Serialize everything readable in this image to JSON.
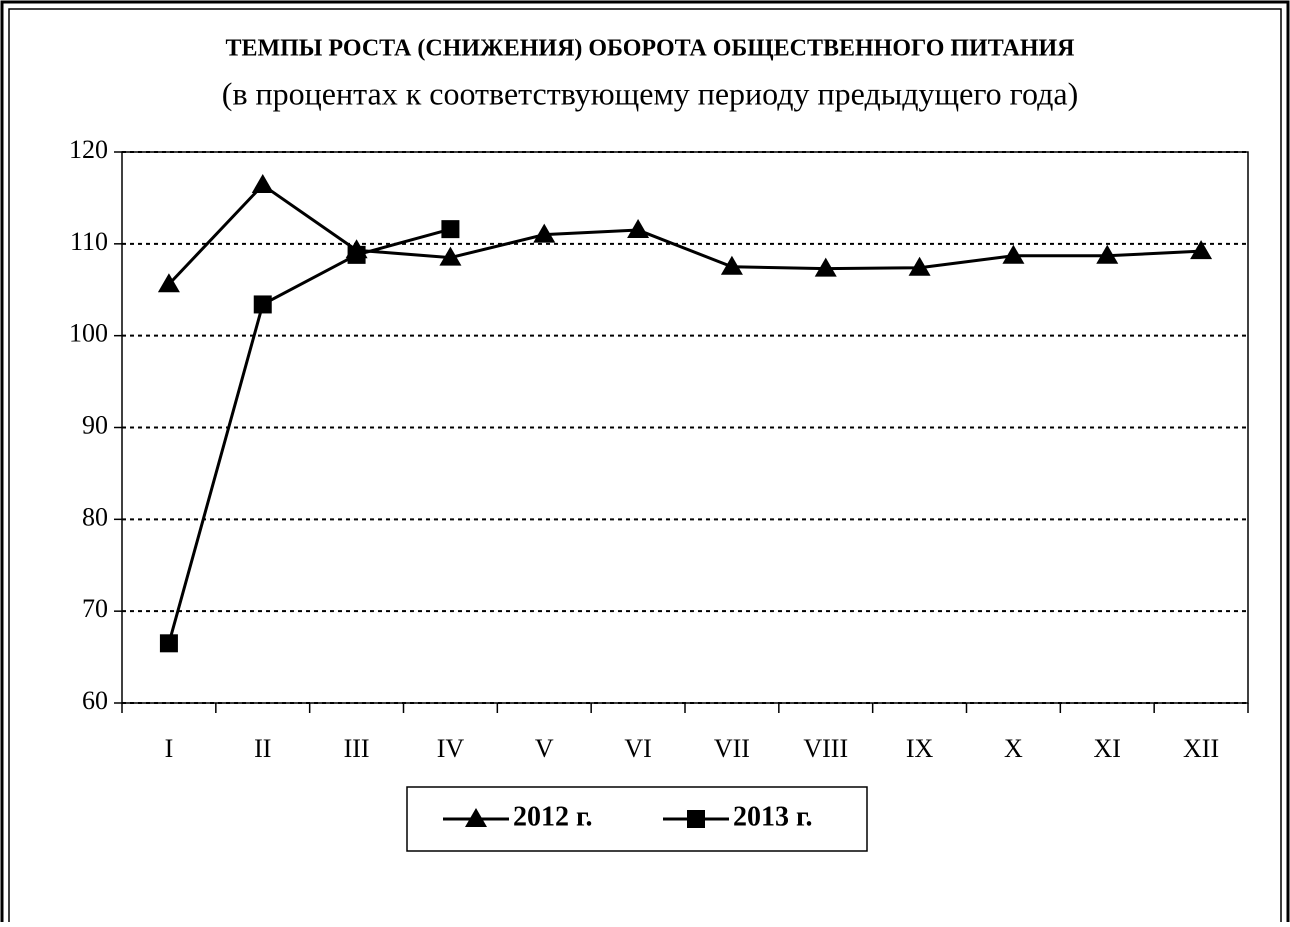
{
  "chart_data": {
    "type": "line",
    "title": "ТЕМПЫ РОСТА (СНИЖЕНИЯ) ОБОРОТА ОБЩЕСТВЕННОГО  ПИТАНИЯ",
    "subtitle": "(в процентах к соответствующему периоду предыдущего года)",
    "categories": [
      "I",
      "II",
      "III",
      "IV",
      "V",
      "VI",
      "VII",
      "VIII",
      "IX",
      "X",
      "XI",
      "XII"
    ],
    "series": [
      {
        "name": "2012 г.",
        "color": "#000000",
        "marker": "triangle",
        "values": [
          105.6,
          116.4,
          109.3,
          108.5,
          111.0,
          111.5,
          107.5,
          107.3,
          107.4,
          108.7,
          108.7,
          109.2
        ]
      },
      {
        "name": "2013 г.",
        "color": "#000000",
        "marker": "square",
        "values": [
          66.5,
          103.4,
          108.8,
          111.6,
          null,
          null,
          null,
          null,
          null,
          null,
          null,
          null
        ]
      }
    ],
    "ylim": [
      60,
      120
    ],
    "yticks": [
      60,
      70,
      80,
      90,
      100,
      110,
      120
    ],
    "grid": true,
    "legend": "bottom"
  }
}
